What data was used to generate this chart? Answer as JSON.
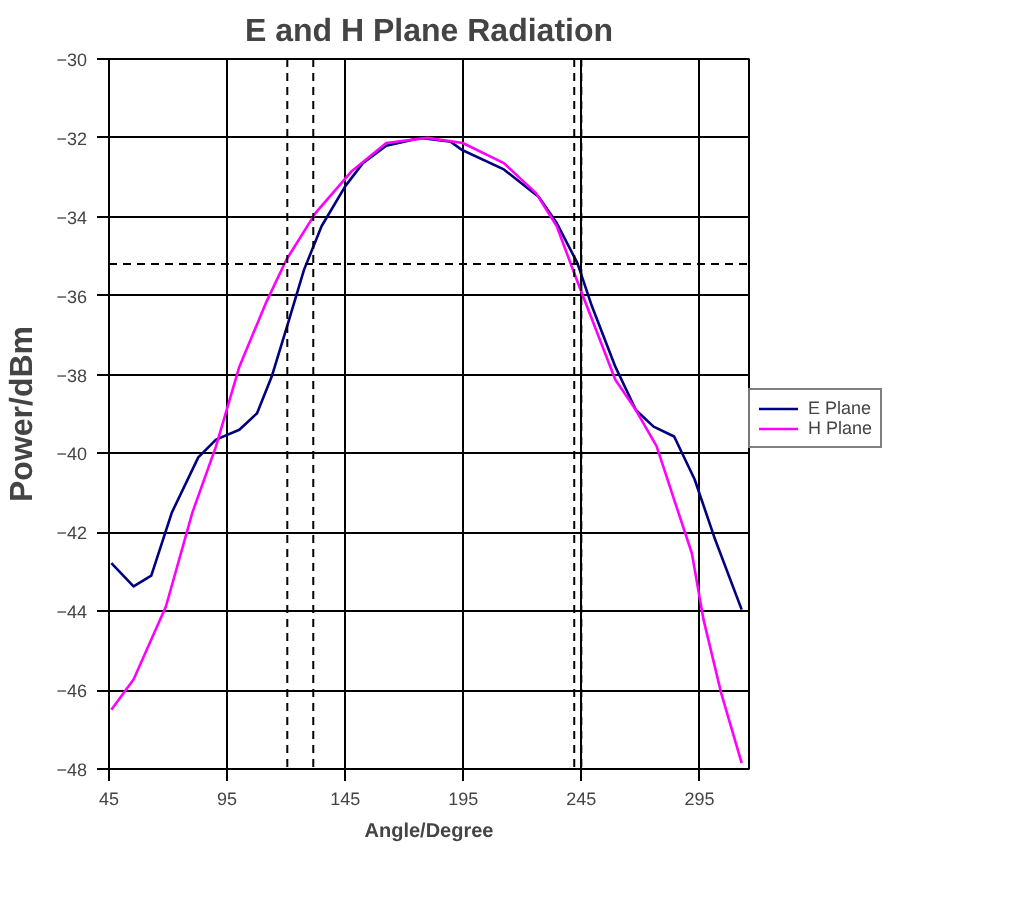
{
  "chart_data": {
    "type": "line",
    "title": "E and H Plane Radiation",
    "xlabel": "Angle/Degree",
    "ylabel": "Power/dBm",
    "xlim": [
      45,
      316
    ],
    "xticks": [
      45,
      95,
      145,
      195,
      245,
      295
    ],
    "ylim": [
      -48,
      -30
    ],
    "yticks": [
      -48,
      -46,
      -44,
      -42,
      -40,
      -38,
      -36,
      -34,
      -32,
      -30
    ],
    "grid": true,
    "legend": "right",
    "marker": "none",
    "line_style": "solid",
    "series": [
      {
        "name": "E Plane",
        "color": "#000080",
        "x": [
          46,
          55.4,
          62.9,
          71.6,
          82.8,
          90.3,
          100.2,
          107.7,
          113.9,
          121.3,
          127.6,
          135,
          145,
          152.5,
          162.4,
          177,
          189.8,
          194.3,
          212.2,
          227,
          234.6,
          243.3,
          249.5,
          259.4,
          268.1,
          275.6,
          284.3,
          293,
          301.7,
          312.9
        ],
        "values": [
          -42.78,
          -43.37,
          -43.1,
          -41.5,
          -40.1,
          -39.65,
          -39.4,
          -38.98,
          -38.05,
          -36.6,
          -35.34,
          -34.24,
          -33.23,
          -32.64,
          -32.2,
          -32.0,
          -32.1,
          -32.3,
          -32.8,
          -33.5,
          -34.16,
          -35.17,
          -36.27,
          -37.8,
          -38.9,
          -39.32,
          -39.57,
          -40.66,
          -42.19,
          -43.96
        ]
      },
      {
        "name": "H Plane",
        "color": "#ff00ff",
        "x": [
          46,
          55.4,
          69.1,
          80.3,
          90.3,
          100.2,
          111.4,
          120.1,
          132.5,
          147.5,
          162.4,
          179.8,
          194.8,
          212.2,
          225.8,
          234.6,
          242,
          249.5,
          259.4,
          268.1,
          276.9,
          284.3,
          291.8,
          296.7,
          304.2,
          312.9
        ],
        "values": [
          -46.5,
          -45.73,
          -43.88,
          -41.5,
          -39.82,
          -37.8,
          -36.19,
          -35.09,
          -33.9,
          -32.86,
          -32.13,
          -32.0,
          -32.13,
          -32.64,
          -33.4,
          -34.24,
          -35.43,
          -36.6,
          -38.13,
          -38.9,
          -39.82,
          -41.17,
          -42.53,
          -44.2,
          -46.07,
          -47.85
        ]
      }
    ],
    "ref_lines": [
      {
        "axis": "x",
        "value": 120.5,
        "color": "#000000",
        "line_style": "dashed"
      },
      {
        "axis": "x",
        "value": 131.5,
        "color": "#000000",
        "line_style": "dashed"
      },
      {
        "axis": "x",
        "value": 242,
        "color": "#000000",
        "line_style": "dashed"
      },
      {
        "axis": "x",
        "value": 245,
        "color": "#000000",
        "line_style": "dashed"
      },
      {
        "axis": "y",
        "value": -35.2,
        "color": "#000000",
        "line_style": "dashed"
      }
    ]
  }
}
